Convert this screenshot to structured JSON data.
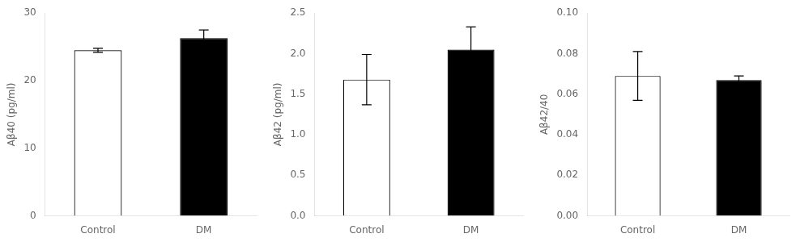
{
  "chart_data": [
    {
      "type": "bar",
      "ylabel": "Aβ40 (pg/ml)",
      "categories": [
        "Control",
        "DM"
      ],
      "values": [
        24.5,
        26.3
      ],
      "errors": [
        0.3,
        1.2
      ],
      "colors": [
        "white",
        "black"
      ],
      "ylim": [
        0,
        30
      ],
      "yticks": [
        0,
        10,
        20,
        30
      ],
      "grid": false
    },
    {
      "type": "bar",
      "ylabel": "Aβ42 (pg/ml)",
      "categories": [
        "Control",
        "DM"
      ],
      "values": [
        1.68,
        2.05
      ],
      "errors": [
        0.31,
        0.28
      ],
      "colors": [
        "white",
        "black"
      ],
      "ylim": [
        0.0,
        2.5
      ],
      "yticks": [
        {
          "value": 0.0,
          "label": "0.0"
        },
        0.5,
        {
          "value": 1.0,
          "label": "1.0"
        },
        1.5,
        {
          "value": 2.0,
          "label": "2.0"
        },
        2.5
      ],
      "grid": false
    },
    {
      "type": "bar",
      "ylabel": "Aβ42/40",
      "categories": [
        "Control",
        "DM"
      ],
      "values": [
        0.069,
        0.067
      ],
      "errors": [
        0.012,
        0.002
      ],
      "colors": [
        "white",
        "black"
      ],
      "ylim": [
        0.0,
        0.1
      ],
      "yticks": [
        {
          "value": 0.0,
          "label": "0.00"
        },
        0.02,
        0.04,
        0.06,
        0.08,
        {
          "value": 0.1,
          "label": "0.10"
        }
      ],
      "grid": false
    }
  ]
}
